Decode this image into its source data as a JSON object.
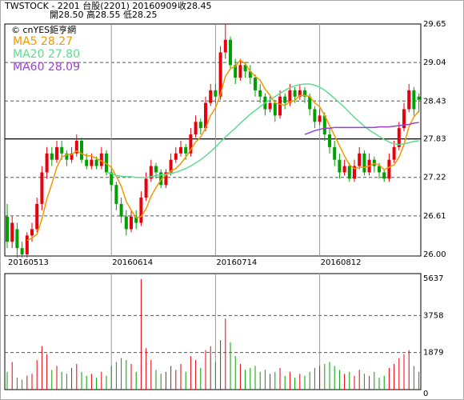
{
  "header": {
    "line1": "TWSTOCK - 2201  台股(2201) 20160909",
    "close": "收28.45",
    "line2": "開28.50  高28.55   低28.25"
  },
  "chart_data": {
    "type": "candlestick",
    "source": "© cnYES鉅亨網",
    "categories": [
      "20160513",
      null,
      null,
      null,
      null,
      null,
      null,
      null,
      null,
      null,
      null,
      null,
      null,
      null,
      null,
      null,
      null,
      null,
      null,
      null,
      null,
      "20160614",
      null,
      null,
      null,
      null,
      null,
      null,
      null,
      null,
      null,
      null,
      null,
      null,
      null,
      null,
      null,
      null,
      null,
      null,
      null,
      null,
      "20160714",
      null,
      null,
      null,
      null,
      null,
      null,
      null,
      null,
      null,
      null,
      null,
      null,
      null,
      null,
      null,
      null,
      null,
      null,
      null,
      null,
      "20160812",
      null,
      null,
      null,
      null,
      null,
      null,
      null,
      null,
      null,
      null,
      null,
      null,
      null,
      null,
      null,
      null,
      null,
      null,
      null
    ],
    "ohlc": [
      [
        26.6,
        26.8,
        26.1,
        26.2
      ],
      [
        26.2,
        26.6,
        26.1,
        26.5
      ],
      [
        26.4,
        26.5,
        25.95,
        26.1
      ],
      [
        26.1,
        26.2,
        25.95,
        26.0
      ],
      [
        26.0,
        26.35,
        25.95,
        26.3
      ],
      [
        26.3,
        26.5,
        26.2,
        26.4
      ],
      [
        26.4,
        26.9,
        26.35,
        26.8
      ],
      [
        26.8,
        27.4,
        26.7,
        27.3
      ],
      [
        27.3,
        27.7,
        27.2,
        27.6
      ],
      [
        27.6,
        27.7,
        27.4,
        27.5
      ],
      [
        27.5,
        27.8,
        27.45,
        27.7
      ],
      [
        27.7,
        27.8,
        27.5,
        27.6
      ],
      [
        27.6,
        27.65,
        27.4,
        27.5
      ],
      [
        27.5,
        27.7,
        27.45,
        27.6
      ],
      [
        27.6,
        27.9,
        27.55,
        27.8
      ],
      [
        27.8,
        27.85,
        27.45,
        27.5
      ],
      [
        27.5,
        27.6,
        27.35,
        27.4
      ],
      [
        27.4,
        27.6,
        27.35,
        27.5
      ],
      [
        27.5,
        27.55,
        27.35,
        27.4
      ],
      [
        27.4,
        27.7,
        27.35,
        27.6
      ],
      [
        27.6,
        27.65,
        27.25,
        27.3
      ],
      [
        27.3,
        27.35,
        27.0,
        27.1
      ],
      [
        27.1,
        27.15,
        26.7,
        26.8
      ],
      [
        26.8,
        26.9,
        26.5,
        26.6
      ],
      [
        26.6,
        26.7,
        26.3,
        26.4
      ],
      [
        26.4,
        26.7,
        26.35,
        26.6
      ],
      [
        26.6,
        26.7,
        26.4,
        26.5
      ],
      [
        26.5,
        27.0,
        26.45,
        26.9
      ],
      [
        26.9,
        27.3,
        26.85,
        27.2
      ],
      [
        27.2,
        27.5,
        27.15,
        27.4
      ],
      [
        27.4,
        27.45,
        27.2,
        27.3
      ],
      [
        27.3,
        27.35,
        27.05,
        27.1
      ],
      [
        27.1,
        27.35,
        27.05,
        27.3
      ],
      [
        27.3,
        27.6,
        27.25,
        27.5
      ],
      [
        27.5,
        27.7,
        27.45,
        27.6
      ],
      [
        27.6,
        27.8,
        27.55,
        27.7
      ],
      [
        27.7,
        27.75,
        27.5,
        27.6
      ],
      [
        27.6,
        28.0,
        27.55,
        27.9
      ],
      [
        27.9,
        28.2,
        27.85,
        28.1
      ],
      [
        28.1,
        28.15,
        27.9,
        28.0
      ],
      [
        28.0,
        28.5,
        27.95,
        28.4
      ],
      [
        28.4,
        28.7,
        28.35,
        28.6
      ],
      [
        28.6,
        28.7,
        28.4,
        28.5
      ],
      [
        28.5,
        29.3,
        28.45,
        29.2
      ],
      [
        29.2,
        29.65,
        29.1,
        29.4
      ],
      [
        29.4,
        29.45,
        28.95,
        29.0
      ],
      [
        29.0,
        29.1,
        28.7,
        28.8
      ],
      [
        28.8,
        29.1,
        28.75,
        29.0
      ],
      [
        29.0,
        29.05,
        28.8,
        28.9
      ],
      [
        28.9,
        29.0,
        28.7,
        28.8
      ],
      [
        28.8,
        28.85,
        28.5,
        28.6
      ],
      [
        28.6,
        28.7,
        28.4,
        28.5
      ],
      [
        28.5,
        28.55,
        28.2,
        28.3
      ],
      [
        28.3,
        28.5,
        28.25,
        28.4
      ],
      [
        28.4,
        28.45,
        28.1,
        28.2
      ],
      [
        28.2,
        28.6,
        28.15,
        28.5
      ],
      [
        28.5,
        28.55,
        28.3,
        28.4
      ],
      [
        28.4,
        28.7,
        28.35,
        28.6
      ],
      [
        28.6,
        28.65,
        28.4,
        28.5
      ],
      [
        28.5,
        28.7,
        28.45,
        28.6
      ],
      [
        28.6,
        28.65,
        28.4,
        28.5
      ],
      [
        28.5,
        28.55,
        28.2,
        28.3
      ],
      [
        28.3,
        28.35,
        28.0,
        28.1
      ],
      [
        28.1,
        28.3,
        28.05,
        28.2
      ],
      [
        28.2,
        28.25,
        27.8,
        27.9
      ],
      [
        27.9,
        28.0,
        27.6,
        27.7
      ],
      [
        27.7,
        27.8,
        27.4,
        27.5
      ],
      [
        27.5,
        27.6,
        27.2,
        27.3
      ],
      [
        27.3,
        27.5,
        27.25,
        27.4
      ],
      [
        27.4,
        27.45,
        27.15,
        27.2
      ],
      [
        27.2,
        27.5,
        27.15,
        27.4
      ],
      [
        27.4,
        27.7,
        27.35,
        27.6
      ],
      [
        27.6,
        27.65,
        27.25,
        27.3
      ],
      [
        27.3,
        27.6,
        27.25,
        27.5
      ],
      [
        27.5,
        27.55,
        27.3,
        27.4
      ],
      [
        27.4,
        27.45,
        27.2,
        27.3
      ],
      [
        27.3,
        27.35,
        27.15,
        27.2
      ],
      [
        27.2,
        27.6,
        27.15,
        27.5
      ],
      [
        27.5,
        27.8,
        27.45,
        27.7
      ],
      [
        27.7,
        28.1,
        27.65,
        28.0
      ],
      [
        28.0,
        28.4,
        27.95,
        28.3
      ],
      [
        28.3,
        28.7,
        28.25,
        28.6
      ],
      [
        28.6,
        28.65,
        28.2,
        28.3
      ],
      [
        28.5,
        28.55,
        28.25,
        28.45
      ]
    ],
    "up_color": "#e8000b",
    "down_color": "#00a000",
    "ylim": [
      26.0,
      29.65
    ],
    "yticks": [
      {
        "value": 26.0,
        "label": "26.00"
      },
      26.61,
      27.22,
      27.83,
      28.43,
      29.04,
      29.65
    ],
    "reference_line": 27.83,
    "moving_averages": [
      {
        "name": "MA5 28.27",
        "color": "#f39800",
        "values": [
          null,
          null,
          null,
          null,
          26.22,
          26.26,
          26.32,
          26.56,
          26.88,
          27.12,
          27.38,
          27.54,
          27.58,
          27.58,
          27.64,
          27.6,
          27.56,
          27.56,
          27.52,
          27.48,
          27.44,
          27.38,
          27.24,
          27.08,
          26.84,
          26.7,
          26.58,
          26.6,
          26.72,
          26.92,
          27.06,
          27.18,
          27.26,
          27.32,
          27.36,
          27.44,
          27.54,
          27.66,
          27.78,
          27.86,
          28.0,
          28.2,
          28.32,
          28.54,
          28.82,
          28.94,
          28.98,
          29.08,
          29.02,
          28.9,
          28.82,
          28.76,
          28.62,
          28.52,
          28.4,
          28.38,
          28.36,
          28.42,
          28.44,
          28.52,
          28.52,
          28.5,
          28.4,
          28.34,
          28.2,
          28.04,
          27.88,
          27.72,
          27.56,
          27.42,
          27.36,
          27.38,
          27.38,
          27.4,
          27.44,
          27.42,
          27.34,
          27.38,
          27.42,
          27.54,
          27.74,
          28.02,
          28.18,
          28.27
        ]
      },
      {
        "name": "MA20 27.80",
        "color": "#5fdc8f",
        "values": [
          null,
          null,
          null,
          null,
          null,
          null,
          null,
          null,
          null,
          null,
          null,
          null,
          null,
          null,
          null,
          null,
          null,
          null,
          null,
          null,
          27.3,
          27.28,
          27.25,
          27.24,
          27.23,
          27.23,
          27.22,
          27.22,
          27.22,
          27.23,
          27.25,
          27.26,
          27.27,
          27.28,
          27.3,
          27.33,
          27.36,
          27.4,
          27.45,
          27.5,
          27.56,
          27.63,
          27.7,
          27.78,
          27.86,
          27.93,
          28.0,
          28.08,
          28.15,
          28.22,
          28.28,
          28.34,
          28.4,
          28.45,
          28.5,
          28.55,
          28.6,
          28.64,
          28.67,
          28.69,
          28.7,
          28.7,
          28.68,
          28.65,
          28.6,
          28.54,
          28.47,
          28.4,
          28.33,
          28.25,
          28.17,
          28.1,
          28.03,
          27.97,
          27.92,
          27.87,
          27.82,
          27.78,
          27.75,
          27.74,
          27.75,
          27.77,
          27.79,
          27.8
        ]
      },
      {
        "name": "MA60 28.09",
        "color": "#9a3fd0",
        "values": [
          null,
          null,
          null,
          null,
          null,
          null,
          null,
          null,
          null,
          null,
          null,
          null,
          null,
          null,
          null,
          null,
          null,
          null,
          null,
          null,
          null,
          null,
          null,
          null,
          null,
          null,
          null,
          null,
          null,
          null,
          null,
          null,
          null,
          null,
          null,
          null,
          null,
          null,
          null,
          null,
          null,
          null,
          null,
          null,
          null,
          null,
          null,
          null,
          null,
          null,
          null,
          null,
          null,
          null,
          null,
          null,
          null,
          null,
          null,
          null,
          27.9,
          27.93,
          27.96,
          27.98,
          28.0,
          28.0,
          28.01,
          28.01,
          28.01,
          28.01,
          28.01,
          28.01,
          28.01,
          28.01,
          28.01,
          28.02,
          28.02,
          28.02,
          28.03,
          28.04,
          28.05,
          28.06,
          28.08,
          28.09
        ]
      }
    ],
    "volume": {
      "values": [
        900,
        1400,
        600,
        500,
        700,
        800,
        1500,
        2200,
        1800,
        1000,
        1200,
        900,
        800,
        1100,
        1300,
        900,
        700,
        800,
        600,
        900,
        700,
        1200,
        1400,
        1600,
        1500,
        1300,
        900,
        5600,
        2100,
        1500,
        1000,
        800,
        900,
        1200,
        1000,
        1300,
        900,
        1700,
        1500,
        1100,
        2000,
        2200,
        1400,
        2500,
        3600,
        2400,
        1700,
        1300,
        1000,
        1100,
        1200,
        900,
        1000,
        800,
        900,
        1100,
        700,
        900,
        600,
        800,
        700,
        900,
        1100,
        1200,
        1300,
        1400,
        1200,
        1000,
        800,
        900,
        700,
        1000,
        800,
        700,
        900,
        600,
        700,
        1100,
        1300,
        1600,
        1800,
        2000,
        1200,
        900
      ],
      "ylim": [
        0,
        5637
      ],
      "yticks": [
        0,
        1879,
        3758,
        5637
      ]
    }
  }
}
